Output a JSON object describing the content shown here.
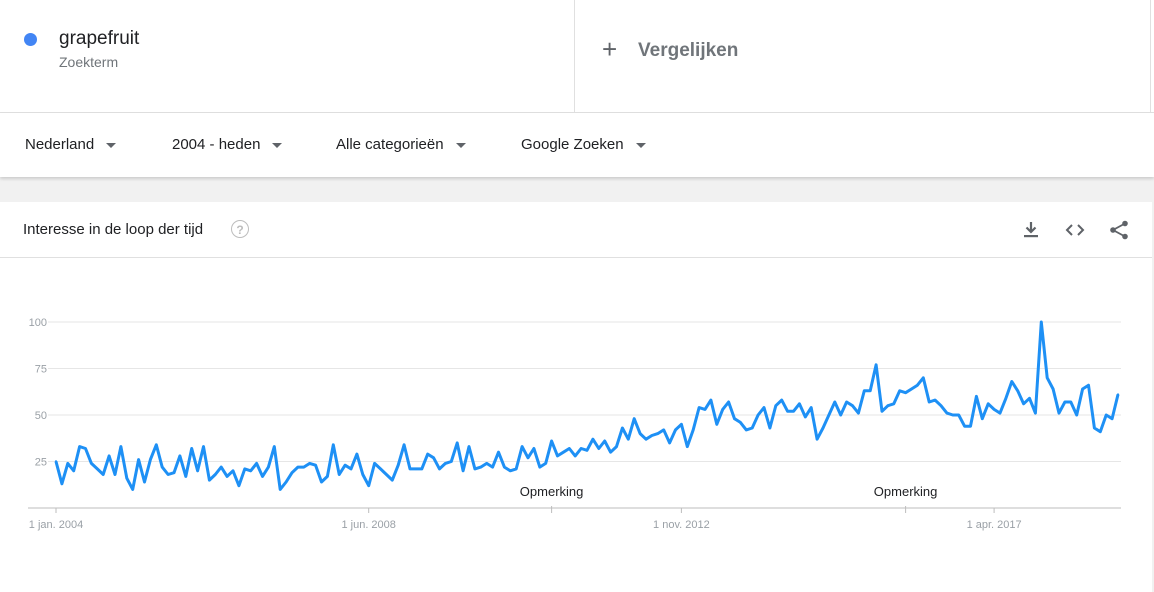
{
  "term": {
    "name": "grapefruit",
    "type": "Zoekterm",
    "color": "#4285f4"
  },
  "compare": {
    "label": "Vergelijken"
  },
  "filters": {
    "region": "Nederland",
    "period": "2004 - heden",
    "category": "Alle categorieën",
    "property": "Google Zoeken"
  },
  "card": {
    "title": "Interesse in de loop der tijd",
    "help_icon": "?"
  },
  "icons": {
    "download": "download-icon",
    "embed": "embed-code-icon",
    "share": "share-icon"
  },
  "chart_data": {
    "type": "line",
    "series_color": "#1e90f5",
    "ylim": [
      0,
      100
    ],
    "y_ticks": [
      25,
      50,
      75,
      100
    ],
    "grid": true,
    "x_ticks": [
      "1 jan. 2004",
      "1 jun. 2008",
      "1 nov. 2012",
      "1 apr. 2017"
    ],
    "x_tick_indices": [
      0,
      53,
      106,
      159
    ],
    "annotations": [
      {
        "label": "Opmerking",
        "index": 84
      },
      {
        "label": "Opmerking",
        "index": 144
      }
    ],
    "values": [
      25,
      13,
      24,
      20,
      33,
      32,
      24,
      21,
      18,
      28,
      18,
      33,
      16,
      10,
      26,
      14,
      26,
      34,
      22,
      18,
      19,
      28,
      17,
      32,
      20,
      33,
      15,
      18,
      22,
      17,
      20,
      12,
      21,
      20,
      24,
      17,
      22,
      33,
      10,
      14,
      19,
      22,
      22,
      24,
      23,
      14,
      17,
      34,
      18,
      23,
      21,
      29,
      18,
      12,
      24,
      21,
      18,
      15,
      23,
      34,
      21,
      21,
      21,
      29,
      27,
      21,
      24,
      25,
      35,
      20,
      33,
      21,
      22,
      24,
      22,
      30,
      22,
      20,
      21,
      33,
      27,
      32,
      22,
      24,
      36,
      28,
      30,
      32,
      28,
      32,
      31,
      37,
      32,
      36,
      30,
      33,
      43,
      37,
      48,
      40,
      37,
      39,
      40,
      42,
      35,
      42,
      45,
      33,
      42,
      54,
      53,
      58,
      45,
      53,
      57,
      48,
      46,
      42,
      43,
      50,
      54,
      43,
      55,
      58,
      52,
      52,
      56,
      49,
      54,
      37,
      43,
      50,
      57,
      50,
      57,
      55,
      51,
      63,
      63,
      77,
      52,
      55,
      56,
      63,
      62,
      64,
      66,
      70,
      57,
      58,
      55,
      51,
      50,
      50,
      44,
      44,
      60,
      48,
      56,
      53,
      51,
      59,
      68,
      63,
      56,
      59,
      51,
      100,
      70,
      64,
      51,
      57,
      57,
      50,
      64,
      66,
      43,
      41,
      50,
      48,
      61
    ]
  }
}
